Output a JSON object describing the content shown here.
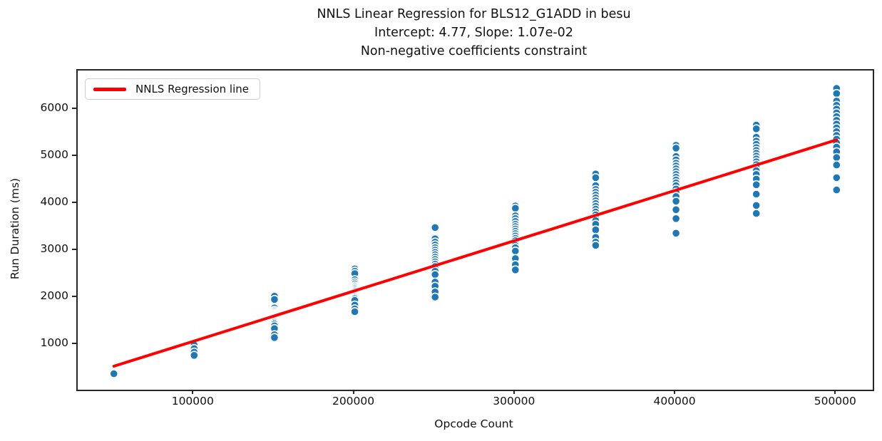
{
  "title": {
    "line1": "NNLS Linear Regression for BLS12_G1ADD in besu",
    "line2": "Intercept: 4.77, Slope: 1.07e-02",
    "line3": "Non-negative coefficients constraint"
  },
  "legend": {
    "items": [
      {
        "label": "NNLS Regression line",
        "color": "#ff0000",
        "swatch": "line"
      }
    ]
  },
  "colors": {
    "scatter_fill": "#1f77b4",
    "scatter_edge": "#ffffff",
    "regression_line": "#ff0000",
    "spine": "#262626",
    "text": "#111111"
  },
  "chart_data": {
    "type": "scatter",
    "title": "NNLS Linear Regression for BLS12_G1ADD in besu",
    "subtitle": "Intercept: 4.77, Slope: 1.07e-02",
    "subtitle2": "Non-negative coefficients constraint",
    "xlabel": "Opcode Count",
    "ylabel": "Run Duration (ms)",
    "xlim": [
      27500,
      522500
    ],
    "ylim": [
      40,
      6830
    ],
    "x_ticks": [
      100000,
      200000,
      300000,
      400000,
      500000
    ],
    "y_ticks": [
      1000,
      2000,
      3000,
      4000,
      5000,
      6000
    ],
    "grid": false,
    "legend_position": "upper left",
    "regression": {
      "label": "NNLS Regression line",
      "intercept": 4.77,
      "slope": 0.0107,
      "x_start": 50000,
      "x_end": 500000
    },
    "series": [
      {
        "name": "runs",
        "marker": "circle",
        "clusters": [
          {
            "x": 50000,
            "y": [
              655,
              640,
              625,
              615,
              605,
              595,
              585,
              575,
              565,
              555,
              545,
              535,
              520,
              505,
              490,
              470,
              450,
              430,
              405,
              380
            ]
          },
          {
            "x": 100000,
            "y": [
              1283,
              1260,
              1240,
              1220,
              1200,
              1185,
              1170,
              1155,
              1140,
              1125,
              1110,
              1095,
              1080,
              1060,
              1040,
              1020,
              995,
              915,
              840,
              770
            ]
          },
          {
            "x": 150000,
            "y": [
              2030,
              1960,
              1780,
              1730,
              1700,
              1670,
              1650,
              1630,
              1610,
              1590,
              1570,
              1550,
              1530,
              1500,
              1470,
              1440,
              1400,
              1340,
              1210,
              1150
            ]
          },
          {
            "x": 200000,
            "y": [
              2610,
              2560,
              2510,
              2380,
              2330,
              2290,
              2250,
              2220,
              2190,
              2160,
              2130,
              2100,
              2070,
              2040,
              2010,
              1980,
              1940,
              1840,
              1760,
              1700
            ]
          },
          {
            "x": 250000,
            "y": [
              3490,
              3250,
              3180,
              3120,
              3060,
              3010,
              2960,
              2910,
              2860,
              2810,
              2760,
              2710,
              2660,
              2610,
              2560,
              2490,
              2330,
              2240,
              2120,
              2010
            ]
          },
          {
            "x": 300000,
            "y": [
              3950,
              3900,
              3740,
              3680,
              3620,
              3560,
              3510,
              3460,
              3410,
              3360,
              3310,
              3260,
              3210,
              3160,
              3110,
              3060,
              2990,
              2830,
              2700,
              2590
            ]
          },
          {
            "x": 350000,
            "y": [
              4630,
              4550,
              4380,
              4300,
              4240,
              4180,
              4120,
              4060,
              4000,
              3940,
              3880,
              3820,
              3760,
              3700,
              3640,
              3560,
              3440,
              3280,
              3180,
              3110
            ]
          },
          {
            "x": 400000,
            "y": [
              5240,
              5180,
              5000,
              4930,
              4860,
              4800,
              4740,
              4680,
              4620,
              4560,
              4500,
              4440,
              4380,
              4310,
              4240,
              4150,
              4050,
              3870,
              3680,
              3370
            ]
          },
          {
            "x": 450000,
            "y": [
              5670,
              5590,
              5410,
              5330,
              5260,
              5190,
              5130,
              5070,
              5010,
              4950,
              4890,
              4830,
              4770,
              4700,
              4620,
              4520,
              4400,
              4200,
              3960,
              3790
            ]
          },
          {
            "x": 500000,
            "y": [
              6450,
              6340,
              6180,
              6090,
              6010,
              5930,
              5850,
              5770,
              5690,
              5610,
              5530,
              5450,
              5370,
              5290,
              5200,
              5100,
              4980,
              4820,
              4550,
              4290
            ]
          }
        ]
      }
    ]
  }
}
